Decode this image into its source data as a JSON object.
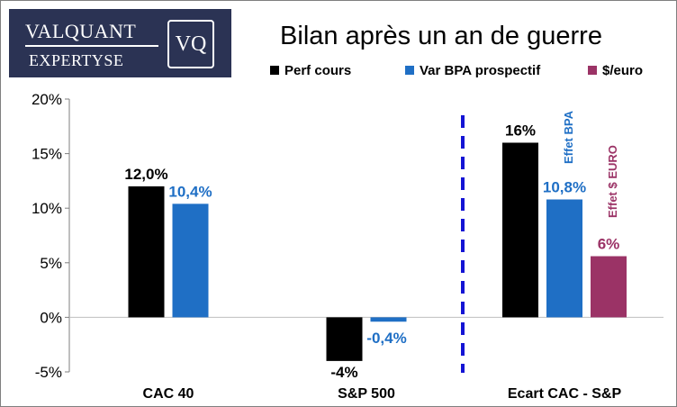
{
  "logo": {
    "brand_top": "VALQUANT",
    "brand_bottom": "EXPERTYSE",
    "mark": "VQ"
  },
  "colors": {
    "perf": "#000000",
    "bpa": "#1f6fc5",
    "usd": "#9b3366",
    "divider": "#1414d4",
    "grid": "#d9d9d9"
  },
  "chart_data": {
    "type": "bar",
    "title": "Bilan après un an de guerre",
    "categories": [
      "CAC 40",
      "S&P 500",
      "Ecart CAC - S&P"
    ],
    "series": [
      {
        "name": "Perf cours",
        "color": "#000000",
        "values": [
          12.0,
          -4,
          16
        ],
        "labels": [
          "12,0%",
          "-4%",
          "16%"
        ]
      },
      {
        "name": "Var BPA prospectif",
        "color": "#1f6fc5",
        "values": [
          10.4,
          -0.4,
          10.8
        ],
        "labels": [
          "10,4%",
          "-0,4%",
          "10,8%"
        ]
      },
      {
        "name": "$/euro",
        "color": "#9b3366",
        "values": [
          null,
          null,
          5.6
        ],
        "labels": [
          "",
          "",
          "6%"
        ]
      }
    ],
    "ylim": [
      -5,
      20
    ],
    "yticks": [
      20,
      15,
      10,
      5,
      0,
      -5
    ],
    "ytick_labels": [
      "20%",
      "15%",
      "10%",
      "5%",
      "0%",
      "-5%"
    ],
    "xlabel": "",
    "ylabel": "",
    "grid": false,
    "legend": "top",
    "annotations": [
      {
        "text": "Effet BPA",
        "color": "#1f6fc5"
      },
      {
        "text": "Effet $ EURO",
        "color": "#9b3366"
      }
    ]
  }
}
